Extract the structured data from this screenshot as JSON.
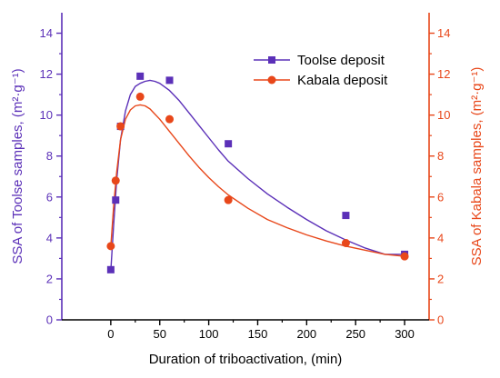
{
  "chart_data": {
    "type": "scatter",
    "xlabel": "Duration of triboactivation, (min)",
    "ylabel_left": "SSA of Toolse samples, (m²·g⁻¹)",
    "ylabel_right": "SSA of Kabala samples, (m²·g⁻¹)",
    "xlim": [
      -50,
      325
    ],
    "ylim_left": [
      0,
      15
    ],
    "ylim_right": [
      0,
      15
    ],
    "x_ticks": [
      0,
      50,
      100,
      150,
      200,
      250,
      300
    ],
    "y_ticks_left": [
      0,
      2,
      4,
      6,
      8,
      10,
      12,
      14
    ],
    "y_ticks_right": [
      0,
      2,
      4,
      6,
      8,
      10,
      12,
      14
    ],
    "legend_position": "top-right",
    "series": [
      {
        "name": "Toolse deposit",
        "color": "#5b30b8",
        "marker": "square",
        "axis": "left",
        "x": [
          0,
          5,
          10,
          30,
          60,
          120,
          240,
          300
        ],
        "y": [
          2.45,
          5.85,
          9.45,
          11.9,
          11.7,
          8.6,
          5.1,
          3.2
        ],
        "fit": {
          "x": [
            0,
            3,
            6,
            10,
            15,
            20,
            25,
            30,
            35,
            40,
            45,
            50,
            60,
            70,
            80,
            90,
            100,
            110,
            120,
            140,
            160,
            180,
            200,
            220,
            240,
            260,
            280,
            300
          ],
          "y": [
            2.4,
            4.7,
            6.8,
            8.8,
            10.2,
            11.0,
            11.4,
            11.55,
            11.65,
            11.7,
            11.65,
            11.55,
            11.2,
            10.7,
            10.1,
            9.5,
            8.9,
            8.3,
            7.75,
            6.9,
            6.15,
            5.5,
            4.9,
            4.35,
            3.9,
            3.5,
            3.2,
            3.2
          ]
        }
      },
      {
        "name": "Kabala deposit",
        "color": "#e8471a",
        "marker": "circle",
        "axis": "right",
        "x": [
          0,
          5,
          10,
          30,
          60,
          120,
          240,
          300
        ],
        "y": [
          3.6,
          6.8,
          9.45,
          10.9,
          9.8,
          5.85,
          3.75,
          3.1
        ],
        "fit": {
          "x": [
            0,
            3,
            6,
            10,
            15,
            20,
            25,
            30,
            35,
            40,
            45,
            50,
            60,
            70,
            80,
            90,
            100,
            110,
            120,
            140,
            160,
            180,
            200,
            220,
            240,
            260,
            280,
            300
          ],
          "y": [
            3.6,
            5.6,
            7.2,
            8.8,
            9.8,
            10.25,
            10.45,
            10.5,
            10.45,
            10.3,
            10.05,
            9.8,
            9.2,
            8.6,
            8.0,
            7.45,
            6.95,
            6.5,
            6.1,
            5.45,
            4.9,
            4.5,
            4.15,
            3.85,
            3.6,
            3.4,
            3.2,
            3.1
          ]
        }
      }
    ],
    "axis_colors": {
      "left": "#5b30b8",
      "right": "#e8471a",
      "bottom": "#000000"
    }
  }
}
